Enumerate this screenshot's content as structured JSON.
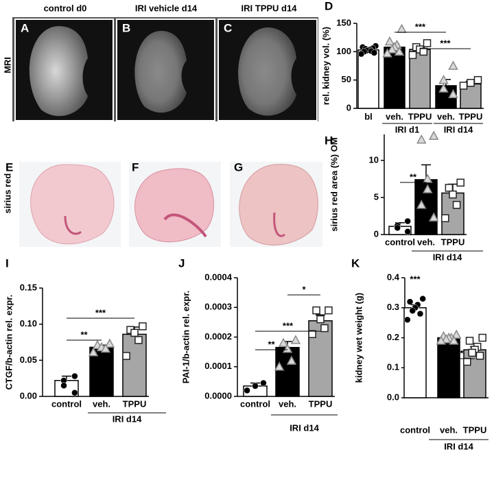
{
  "row_labels": [
    "MRI",
    "sirius red"
  ],
  "images": [
    {
      "letter": "A",
      "title": "control d0"
    },
    {
      "letter": "B",
      "title": "IRI vehicle d14"
    },
    {
      "letter": "C",
      "title": "IRI TPPU d14"
    },
    {
      "letter": "E"
    },
    {
      "letter": "F"
    },
    {
      "letter": "G"
    }
  ],
  "chart_data": [
    {
      "type": "bar",
      "letter": "D",
      "y_label": "rel. kidney vol. (%)",
      "categories": [
        "bl",
        "veh.",
        "TPPU",
        "veh.",
        "TPPU"
      ],
      "values": [
        103,
        108,
        104,
        40,
        43
      ],
      "errors": [
        2,
        6,
        4,
        11,
        5
      ],
      "bar_colors": [
        "#ffffff",
        "#000000",
        "#a6a6a6",
        "#000000",
        "#a6a6a6"
      ],
      "markers": [
        "circle",
        "triangle",
        "square",
        "triangle",
        "square"
      ],
      "points": [
        [
          110,
          108,
          106,
          105,
          104,
          103,
          102,
          101,
          100,
          98,
          96
        ],
        [
          140,
          118,
          112,
          108,
          104,
          100,
          97
        ],
        [
          115,
          108,
          104,
          100,
          94
        ],
        [
          75,
          50,
          35,
          25
        ],
        [
          50,
          45,
          40
        ]
      ],
      "ylim": [
        0,
        150
      ],
      "yticks": [
        0,
        50,
        100,
        150
      ],
      "group_labels": [
        "IRI d1",
        "IRI d14"
      ],
      "significance": [
        "***",
        "***"
      ]
    },
    {
      "type": "bar",
      "letter": "H",
      "y_label": "sirius red area (%) OM",
      "categories": [
        "control",
        "veh.",
        "TPPU"
      ],
      "values": [
        1.1,
        7.4,
        5.6
      ],
      "errors": [
        0.5,
        2.0,
        1.2
      ],
      "bar_colors": [
        "#ffffff",
        "#000000",
        "#a6a6a6"
      ],
      "markers": [
        "circle",
        "triangle",
        "square"
      ],
      "points": [
        [
          1.8,
          1.2,
          0.9,
          0.4
        ],
        [
          13.3,
          12.8,
          7.5,
          6.1,
          4.0,
          2.3
        ],
        [
          7.0,
          6.3,
          5.4,
          4.0,
          2.2
        ]
      ],
      "ylim": [
        0,
        13.5
      ],
      "yticks": [
        0,
        5,
        10
      ],
      "group_labels": [
        "IRI d14"
      ],
      "significance": [
        "**"
      ]
    },
    {
      "type": "bar",
      "letter": "I",
      "y_label": "CTGF/b-actin rel. expr.",
      "categories": [
        "control",
        "veh.",
        "TPPU"
      ],
      "values": [
        0.022,
        0.068,
        0.086
      ],
      "errors": [
        0.006,
        0.003,
        0.01
      ],
      "bar_colors": [
        "#ffffff",
        "#000000",
        "#a6a6a6"
      ],
      "markers": [
        "circle",
        "triangle",
        "square"
      ],
      "points": [
        [
          0.028,
          0.022,
          0.015,
          0.005
        ],
        [
          0.073,
          0.071,
          0.068,
          0.066,
          0.061
        ],
        [
          0.097,
          0.092,
          0.088,
          0.078,
          0.056
        ]
      ],
      "ylim": [
        0,
        0.15
      ],
      "yticks": [
        {
          "value": 0,
          "label": "0.00"
        },
        {
          "value": 0.05,
          "label": "0.05"
        },
        {
          "value": 0.1,
          "label": "0.10"
        },
        {
          "value": 0.15,
          "label": "0.15"
        }
      ],
      "group_labels": [
        "IRI d14"
      ],
      "significance": [
        "**",
        "***"
      ]
    },
    {
      "type": "bar",
      "letter": "J",
      "y_label": "PAI-1/b-actin rel. expr.",
      "categories": [
        "control",
        "veh.",
        "TPPU"
      ],
      "values": [
        3.5e-05,
        0.000165,
        0.000255
      ],
      "errors": [
        1e-05,
        2e-05,
        2e-05
      ],
      "bar_colors": [
        "#ffffff",
        "#000000",
        "#a6a6a6"
      ],
      "markers": [
        "circle",
        "triangle",
        "square"
      ],
      "points": [
        [
          4.5e-05,
          3.5e-05,
          2e-05
        ],
        [
          0.00019,
          0.00018,
          0.00016,
          0.00012,
          0.0001
        ],
        [
          0.00029,
          0.00029,
          0.00026,
          0.00023,
          0.00021
        ]
      ],
      "ylim": [
        0,
        0.0004
      ],
      "yticks": [
        {
          "value": 0,
          "label": "0.0000"
        },
        {
          "value": 0.0001,
          "label": "0.0001"
        },
        {
          "value": 0.0002,
          "label": "0.0002"
        },
        {
          "value": 0.0003,
          "label": "0.0003"
        },
        {
          "value": 0.0004,
          "label": "0.0004"
        }
      ],
      "group_labels": [
        "IRI d14"
      ],
      "significance": [
        "**",
        "***",
        "*"
      ]
    },
    {
      "type": "bar",
      "letter": "K",
      "y_label": "kidney wet weight (g)",
      "categories": [
        "control",
        "veh.",
        "TPPU"
      ],
      "values": [
        0.3,
        0.2,
        0.16
      ],
      "errors": [
        0.01,
        0.005,
        0.01
      ],
      "bar_colors": [
        "#ffffff",
        "#000000",
        "#a6a6a6"
      ],
      "markers": [
        "circle",
        "triangle",
        "square"
      ],
      "points": [
        [
          0.33,
          0.32,
          0.31,
          0.3,
          0.29,
          0.28,
          0.26
        ],
        [
          0.21,
          0.205,
          0.2,
          0.2,
          0.195,
          0.19,
          0.19
        ],
        [
          0.2,
          0.19,
          0.17,
          0.16,
          0.15,
          0.14,
          0.12
        ]
      ],
      "ylim": [
        0,
        0.4
      ],
      "yticks": [
        {
          "value": 0,
          "label": "0.0"
        },
        {
          "value": 0.1,
          "label": "0.1"
        },
        {
          "value": 0.2,
          "label": "0.2"
        },
        {
          "value": 0.3,
          "label": "0.3"
        },
        {
          "value": 0.4,
          "label": "0.4"
        }
      ],
      "group_labels": [
        "IRI d14"
      ],
      "significance": [
        "***",
        "*"
      ]
    }
  ]
}
